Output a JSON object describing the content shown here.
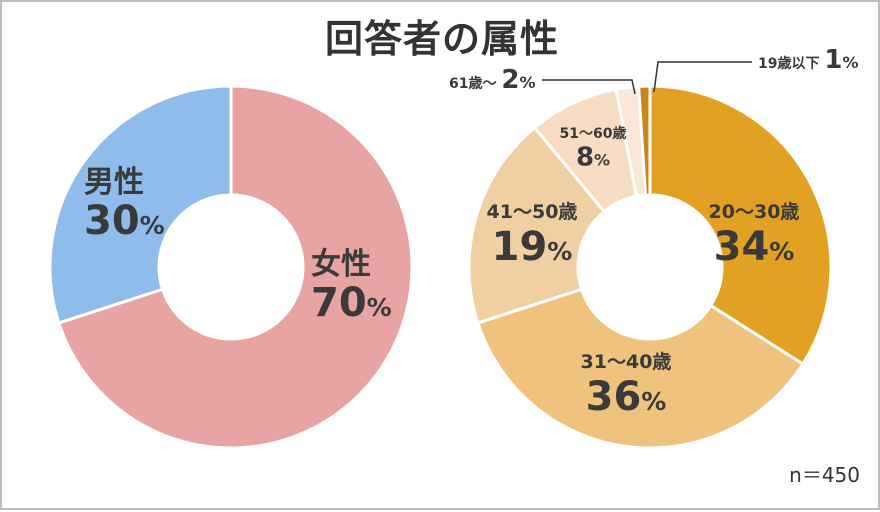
{
  "title": "回答者の属性",
  "sample_size": "n＝450",
  "chart_data": [
    {
      "type": "pie",
      "variant": "donut",
      "title": "",
      "slices": [
        {
          "label": "女性",
          "value": 70,
          "percent_text": "70",
          "color": "#e8a4a2"
        },
        {
          "label": "男性",
          "value": 30,
          "percent_text": "30",
          "color": "#8ebdec"
        }
      ],
      "unit": "%"
    },
    {
      "type": "pie",
      "variant": "donut",
      "title": "",
      "slices": [
        {
          "label": "20～30歳",
          "value": 34,
          "percent_text": "34",
          "color": "#e3a124"
        },
        {
          "label": "31～40歳",
          "value": 36,
          "percent_text": "36",
          "color": "#efc27d"
        },
        {
          "label": "41～50歳",
          "value": 19,
          "percent_text": "19",
          "color": "#f0d0a2"
        },
        {
          "label": "51～60歳",
          "value": 8,
          "percent_text": "8",
          "color": "#f7dcc3"
        },
        {
          "label": "61歳～",
          "value": 2,
          "percent_text": "2",
          "color": "#fbe7d8"
        },
        {
          "label": "19歳以下",
          "value": 1,
          "percent_text": "1",
          "color": "#c9861c"
        }
      ],
      "unit": "%"
    }
  ]
}
